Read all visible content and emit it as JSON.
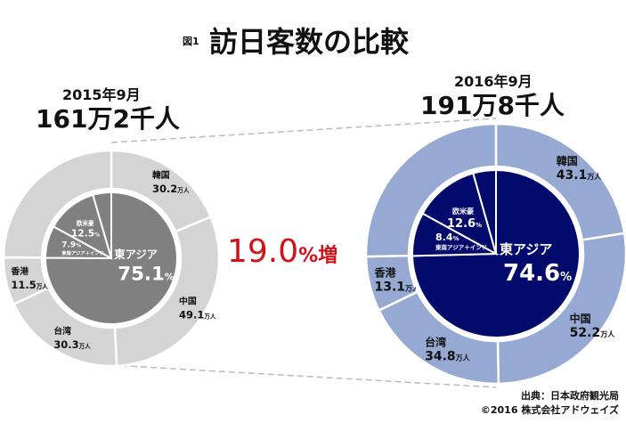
{
  "title": {
    "fig": "図1",
    "main": "訪日客数の比較"
  },
  "increase": {
    "value": "19.0",
    "unit": "%増",
    "color": "#d0121b"
  },
  "source": {
    "line1": "出典：日本政府観光局",
    "line2": "©2016 株式会社アドウェイズ"
  },
  "chart_data": [
    {
      "type": "pie",
      "subtype": "nested-donut",
      "period": "2015年9月",
      "total_label": "161万2千人",
      "total": 161.2,
      "colors": {
        "outer": "#d4d4d4",
        "inner": "#808080"
      },
      "outer": [
        {
          "name": "韓国",
          "value": 30.2,
          "label": "30.2",
          "unit": "万人"
        },
        {
          "name": "中国",
          "value": 49.1,
          "label": "49.1",
          "unit": "万人"
        },
        {
          "name": "台湾",
          "value": 30.3,
          "label": "30.3",
          "unit": "万人"
        },
        {
          "name": "香港",
          "value": 11.5,
          "label": "11.5",
          "unit": "万人"
        },
        {
          "name": "",
          "value": 40.1
        }
      ],
      "inner": [
        {
          "name": "東アジア",
          "value": 75.1,
          "label": "75.1",
          "unit": "%"
        },
        {
          "name": "東南アジア＋インド",
          "value": 7.9,
          "label": "7.9",
          "unit": "%"
        },
        {
          "name": "欧米豪",
          "value": 12.5,
          "label": "12.5",
          "unit": "%"
        },
        {
          "name": "",
          "value": 4.5
        }
      ]
    },
    {
      "type": "pie",
      "subtype": "nested-donut",
      "period": "2016年9月",
      "total_label": "191万8千人",
      "total": 191.8,
      "colors": {
        "outer": "#96a9d3",
        "inner": "#020b6b"
      },
      "outer": [
        {
          "name": "韓国",
          "value": 43.1,
          "label": "43.1",
          "unit": "万人"
        },
        {
          "name": "中国",
          "value": 52.2,
          "label": "52.2",
          "unit": "万人"
        },
        {
          "name": "台湾",
          "value": 34.8,
          "label": "34.8",
          "unit": "万人"
        },
        {
          "name": "香港",
          "value": 13.1,
          "label": "13.1",
          "unit": "万人"
        },
        {
          "name": "",
          "value": 48.6
        }
      ],
      "inner": [
        {
          "name": "東アジア",
          "value": 74.6,
          "label": "74.6",
          "unit": "%"
        },
        {
          "name": "東南アジア＋インド",
          "value": 8.4,
          "label": "8.4",
          "unit": "%"
        },
        {
          "name": "欧米豪",
          "value": 12.6,
          "label": "12.6",
          "unit": "%"
        },
        {
          "name": "",
          "value": 4.4
        }
      ]
    }
  ]
}
